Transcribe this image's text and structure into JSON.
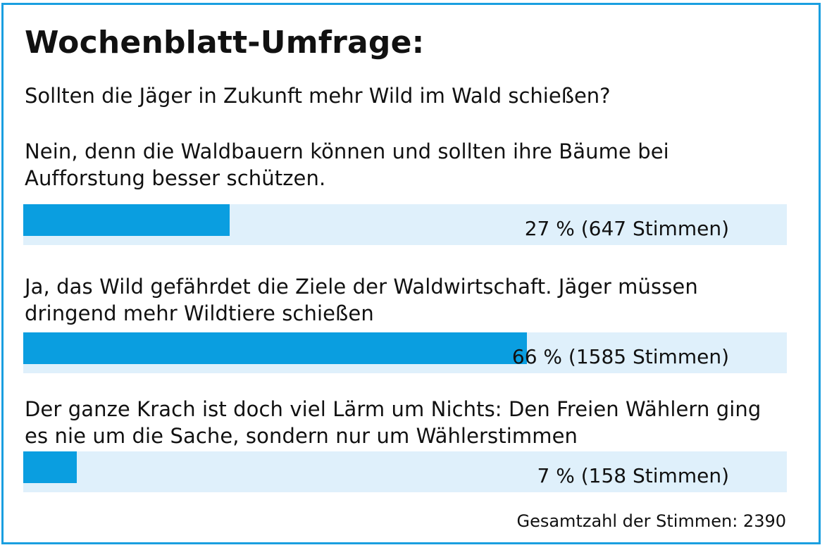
{
  "colors": {
    "frame": "#1a9fe0",
    "bar_fill": "#0a9ee0",
    "bar_track": "#dff0fb"
  },
  "title": "Wochenblatt-Umfrage:",
  "question": "Sollten die Jäger in Zukunft mehr Wild im Wald schießen?",
  "chart_data": {
    "type": "bar",
    "orientation": "horizontal",
    "xlim": [
      0,
      100
    ],
    "categories": [
      [
        "Nein, denn die Waldbauern können und sollten ihre Bäume bei",
        "Aufforstung besser schützen."
      ],
      [
        "Ja, das Wild gefährdet die Ziele der Waldwirtschaft. Jäger müssen",
        "dringend mehr Wildtiere schießen"
      ],
      [
        "Der ganze Krach ist doch viel Lärm um Nichts: Den Freien Wählern ging",
        "es nie um die Sache, sondern nur um Wählerstimmen"
      ]
    ],
    "values": [
      27,
      66,
      7
    ],
    "votes": [
      647,
      1585,
      158
    ],
    "data_labels": [
      "27 % (647 Stimmen)",
      "66 % (1585 Stimmen)",
      "7 % (158 Stimmen)"
    ]
  },
  "total_label": "Gesamtzahl der Stimmen: 2390"
}
